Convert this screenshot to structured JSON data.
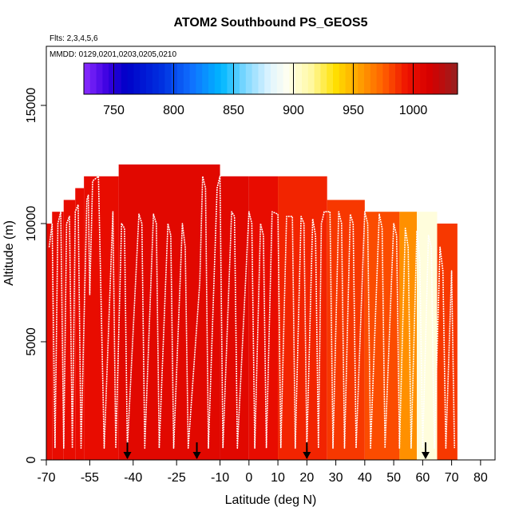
{
  "chart_data": {
    "type": "heatmap",
    "title": "ATOM2 Southbound PS_GEOS5",
    "subtitle_flights": "Flts: 2,3,4,5,6",
    "subtitle_dates": "MMDD: 0129,0201,0203,0205,0210",
    "xlabel": "Latitude (deg N)",
    "ylabel": "Altitude (m)",
    "xlim": [
      -70,
      85
    ],
    "ylim": [
      0,
      17500
    ],
    "x_ticks": [
      -70,
      -55,
      -40,
      -25,
      -10,
      0,
      10,
      20,
      30,
      40,
      50,
      60,
      70,
      80
    ],
    "y_ticks": [
      0,
      5000,
      10000,
      15000
    ],
    "colorbar": {
      "label_ticks": [
        750,
        800,
        850,
        900,
        950,
        1000
      ],
      "range": [
        725,
        1037
      ],
      "stops": [
        {
          "v": 725,
          "c": "#8b2cff"
        },
        {
          "v": 745,
          "c": "#3a00e0"
        },
        {
          "v": 760,
          "c": "#0000c8"
        },
        {
          "v": 790,
          "c": "#0030e0"
        },
        {
          "v": 815,
          "c": "#1070ff"
        },
        {
          "v": 840,
          "c": "#00b8ff"
        },
        {
          "v": 860,
          "c": "#80d8ff"
        },
        {
          "v": 880,
          "c": "#dff4ff"
        },
        {
          "v": 895,
          "c": "#fffff0"
        },
        {
          "v": 915,
          "c": "#fff8a0"
        },
        {
          "v": 935,
          "c": "#ffe000"
        },
        {
          "v": 955,
          "c": "#ffa000"
        },
        {
          "v": 975,
          "c": "#ff6000"
        },
        {
          "v": 995,
          "c": "#ee1000"
        },
        {
          "v": 1015,
          "c": "#d40000"
        },
        {
          "v": 1037,
          "c": "#962020"
        }
      ]
    },
    "date_markers_lat": [
      -42,
      -18,
      20,
      61
    ],
    "field_columns": [
      {
        "x0": -70,
        "x1": -68,
        "top": 10000,
        "v": 1000
      },
      {
        "x0": -68,
        "x1": -64,
        "top": 10500,
        "v": 1000
      },
      {
        "x0": -64,
        "x1": -60,
        "top": 11000,
        "v": 1000
      },
      {
        "x0": -60,
        "x1": -57,
        "top": 11500,
        "v": 1000
      },
      {
        "x0": -57,
        "x1": -45,
        "top": 12000,
        "v": 1000
      },
      {
        "x0": -45,
        "x1": -10,
        "top": 12500,
        "v": 1005
      },
      {
        "x0": -10,
        "x1": 0,
        "top": 12000,
        "v": 1005
      },
      {
        "x0": 0,
        "x1": 10,
        "top": 12000,
        "v": 1000
      },
      {
        "x0": 10,
        "x1": 27,
        "top": 12000,
        "v": 990
      },
      {
        "x0": 27,
        "x1": 40,
        "top": 11000,
        "v": 985
      },
      {
        "x0": 40,
        "x1": 52,
        "top": 10500,
        "v": 980
      },
      {
        "x0": 52,
        "x1": 58,
        "top": 10500,
        "v": 960
      },
      {
        "x0": 58,
        "x1": 65,
        "top": 10500,
        "v": 900
      },
      {
        "x0": 65,
        "x1": 72,
        "top": 10000,
        "v": 985
      }
    ],
    "flight_track": [
      [
        -69,
        9000
      ],
      [
        -68,
        10000
      ],
      [
        -67,
        500
      ],
      [
        -66,
        10000
      ],
      [
        -65,
        10500
      ],
      [
        -64,
        500
      ],
      [
        -63,
        10000
      ],
      [
        -62,
        10300
      ],
      [
        -61,
        500
      ],
      [
        -60,
        10500
      ],
      [
        -59,
        10800
      ],
      [
        -58,
        500
      ],
      [
        -56,
        11000
      ],
      [
        -55.5,
        11200
      ],
      [
        -55,
        7000
      ],
      [
        -54,
        11800
      ],
      [
        -52,
        12000
      ],
      [
        -50,
        500
      ],
      [
        -47,
        10500
      ],
      [
        -46,
        500
      ],
      [
        -44,
        10000
      ],
      [
        -43,
        9800
      ],
      [
        -42,
        500
      ],
      [
        -38,
        10400
      ],
      [
        -37,
        10000
      ],
      [
        -36,
        500
      ],
      [
        -33,
        10400
      ],
      [
        -32,
        10000
      ],
      [
        -31,
        500
      ],
      [
        -28,
        10000
      ],
      [
        -27,
        9500
      ],
      [
        -26,
        500
      ],
      [
        -23,
        10000
      ],
      [
        -22,
        9000
      ],
      [
        -21,
        500
      ],
      [
        -17,
        7500
      ],
      [
        -16,
        12000
      ],
      [
        -15,
        11500
      ],
      [
        -14,
        500
      ],
      [
        -11,
        11500
      ],
      [
        -10,
        12000
      ],
      [
        -9,
        500
      ],
      [
        -6,
        10500
      ],
      [
        -5,
        10300
      ],
      [
        -4,
        500
      ],
      [
        0,
        10500
      ],
      [
        1,
        10000
      ],
      [
        2,
        500
      ],
      [
        4,
        10000
      ],
      [
        5,
        9500
      ],
      [
        6,
        500
      ],
      [
        8,
        10500
      ],
      [
        10,
        10400
      ],
      [
        11,
        500
      ],
      [
        13,
        10300
      ],
      [
        15,
        10300
      ],
      [
        16,
        500
      ],
      [
        18,
        10300
      ],
      [
        19,
        10000
      ],
      [
        20,
        500
      ],
      [
        22,
        10200
      ],
      [
        23,
        9500
      ],
      [
        24,
        500
      ],
      [
        25,
        10000
      ],
      [
        26,
        10500
      ],
      [
        28,
        10500
      ],
      [
        29,
        500
      ],
      [
        31,
        10500
      ],
      [
        32,
        10000
      ],
      [
        33,
        500
      ],
      [
        35,
        10400
      ],
      [
        36,
        10000
      ],
      [
        37,
        500
      ],
      [
        40,
        10500
      ],
      [
        41,
        10000
      ],
      [
        42,
        500
      ],
      [
        45,
        10400
      ],
      [
        46,
        9800
      ],
      [
        47,
        500
      ],
      [
        50,
        10000
      ],
      [
        51,
        9500
      ],
      [
        52,
        500
      ],
      [
        54,
        9800
      ],
      [
        55,
        9000
      ],
      [
        56,
        500
      ],
      [
        58,
        9700
      ],
      [
        59,
        8500
      ],
      [
        60,
        500
      ],
      [
        62,
        9500
      ],
      [
        63,
        9000
      ],
      [
        64,
        500
      ],
      [
        66,
        9000
      ],
      [
        67,
        8000
      ],
      [
        68,
        500
      ],
      [
        70,
        8000
      ],
      [
        71,
        500
      ]
    ]
  }
}
